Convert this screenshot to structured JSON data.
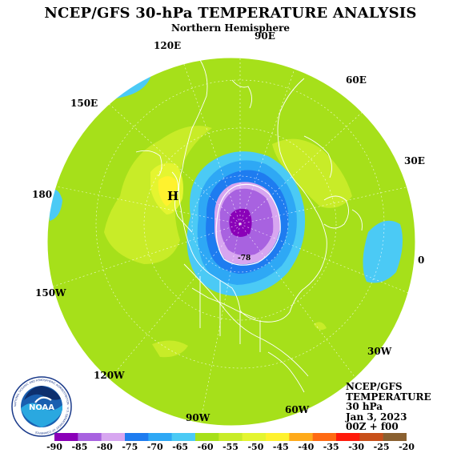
{
  "title": "NCEP/GFS 30-hPa TEMPERATURE ANALYSIS",
  "subtitle": "Northern Hemisphere",
  "longitude_labels": [
    "90E",
    "120E",
    "60E",
    "150E",
    "30E",
    "180",
    "0",
    "150W",
    "30W",
    "120W",
    "60W",
    "90W"
  ],
  "map_labels": {
    "high": "H",
    "contour_value": "-78"
  },
  "info": {
    "line1": "NCEP/GFS",
    "line2": "TEMPERATURE",
    "line3": "30 hPa",
    "date": "Jan 3, 2023",
    "time": "00Z + f00"
  },
  "logo": {
    "text": "NOAA",
    "ring_text": "NATIONAL OCEANIC AND ATMOSPHERIC ADMINISTRATION · U.S. DEPARTMENT OF COMMERCE"
  },
  "colorbar": {
    "labels": [
      "-90",
      "-85",
      "-80",
      "-75",
      "-70",
      "-65",
      "-60",
      "-55",
      "-50",
      "-45",
      "-40",
      "-35",
      "-30",
      "-25",
      "-20"
    ],
    "colors": [
      "#8a00b8",
      "#a862e0",
      "#d7a6f0",
      "#1e7cf0",
      "#2ea8f5",
      "#4bcaf5",
      "#a6e01a",
      "#c8ec28",
      "#e4f530",
      "#fff22e",
      "#ffaa1a",
      "#ff6a12",
      "#ff1a0a",
      "#c8501a",
      "#8a6030"
    ]
  },
  "colors": {
    "outer_field": "#a6e01a",
    "warm_band": "#c8ec28",
    "warm_patch": "#e4f530",
    "high_core": "#fff22e",
    "ring_1": "#4bcaf5",
    "ring_2": "#2ea8f5",
    "ring_3": "#1e7cf0",
    "ring_4": "#d7a6f0",
    "vortex_core": "#a862e0",
    "deep_core": "#8a00b8"
  }
}
